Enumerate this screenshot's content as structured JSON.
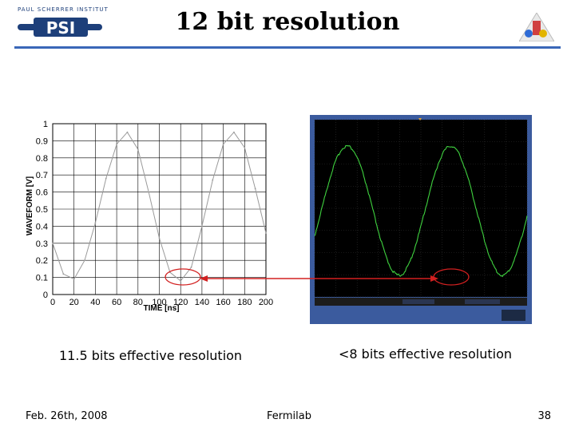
{
  "header": {
    "title": "12 bit resolution",
    "logo_org_text": "PAUL SCHERRER INSTITUT",
    "logo_mark_text": "PSI"
  },
  "left_plot": {
    "ylabel": "WAVEFORM [V]",
    "xlabel": "TIME [ns]",
    "y_ticks": [
      "0",
      "0.1",
      "0.2",
      "0.3",
      "0.4",
      "0.5",
      "0.6",
      "0.7",
      "0.8",
      "0.9",
      "1"
    ],
    "x_ticks": [
      "0",
      "20",
      "40",
      "60",
      "80",
      "100",
      "120",
      "140",
      "160",
      "180",
      "200"
    ],
    "caption": "11.5 bits effective resolution"
  },
  "scope": {
    "caption": "<8 bits effective resolution"
  },
  "footer": {
    "date": "Feb. 26th, 2008",
    "center": "Fermilab",
    "page": "38"
  },
  "colors": {
    "rule": "#3a67b8",
    "marker": "#d22020",
    "scope_trace": "#3fd23f"
  },
  "chart_data": {
    "type": "line",
    "title": "",
    "xlabel": "TIME [ns]",
    "ylabel": "WAVEFORM [V]",
    "xlim": [
      0,
      200
    ],
    "ylim": [
      0,
      1
    ],
    "grid": true,
    "series": [
      {
        "x": [
          0,
          10,
          20,
          30,
          40,
          50,
          60,
          70,
          80,
          90,
          100,
          110,
          120,
          130,
          140,
          150,
          160,
          170,
          180,
          190,
          200
        ],
        "y": [
          0.3,
          0.12,
          0.09,
          0.2,
          0.42,
          0.68,
          0.88,
          0.95,
          0.85,
          0.6,
          0.33,
          0.13,
          0.08,
          0.16,
          0.4,
          0.67,
          0.88,
          0.95,
          0.86,
          0.62,
          0.36
        ]
      }
    ]
  }
}
